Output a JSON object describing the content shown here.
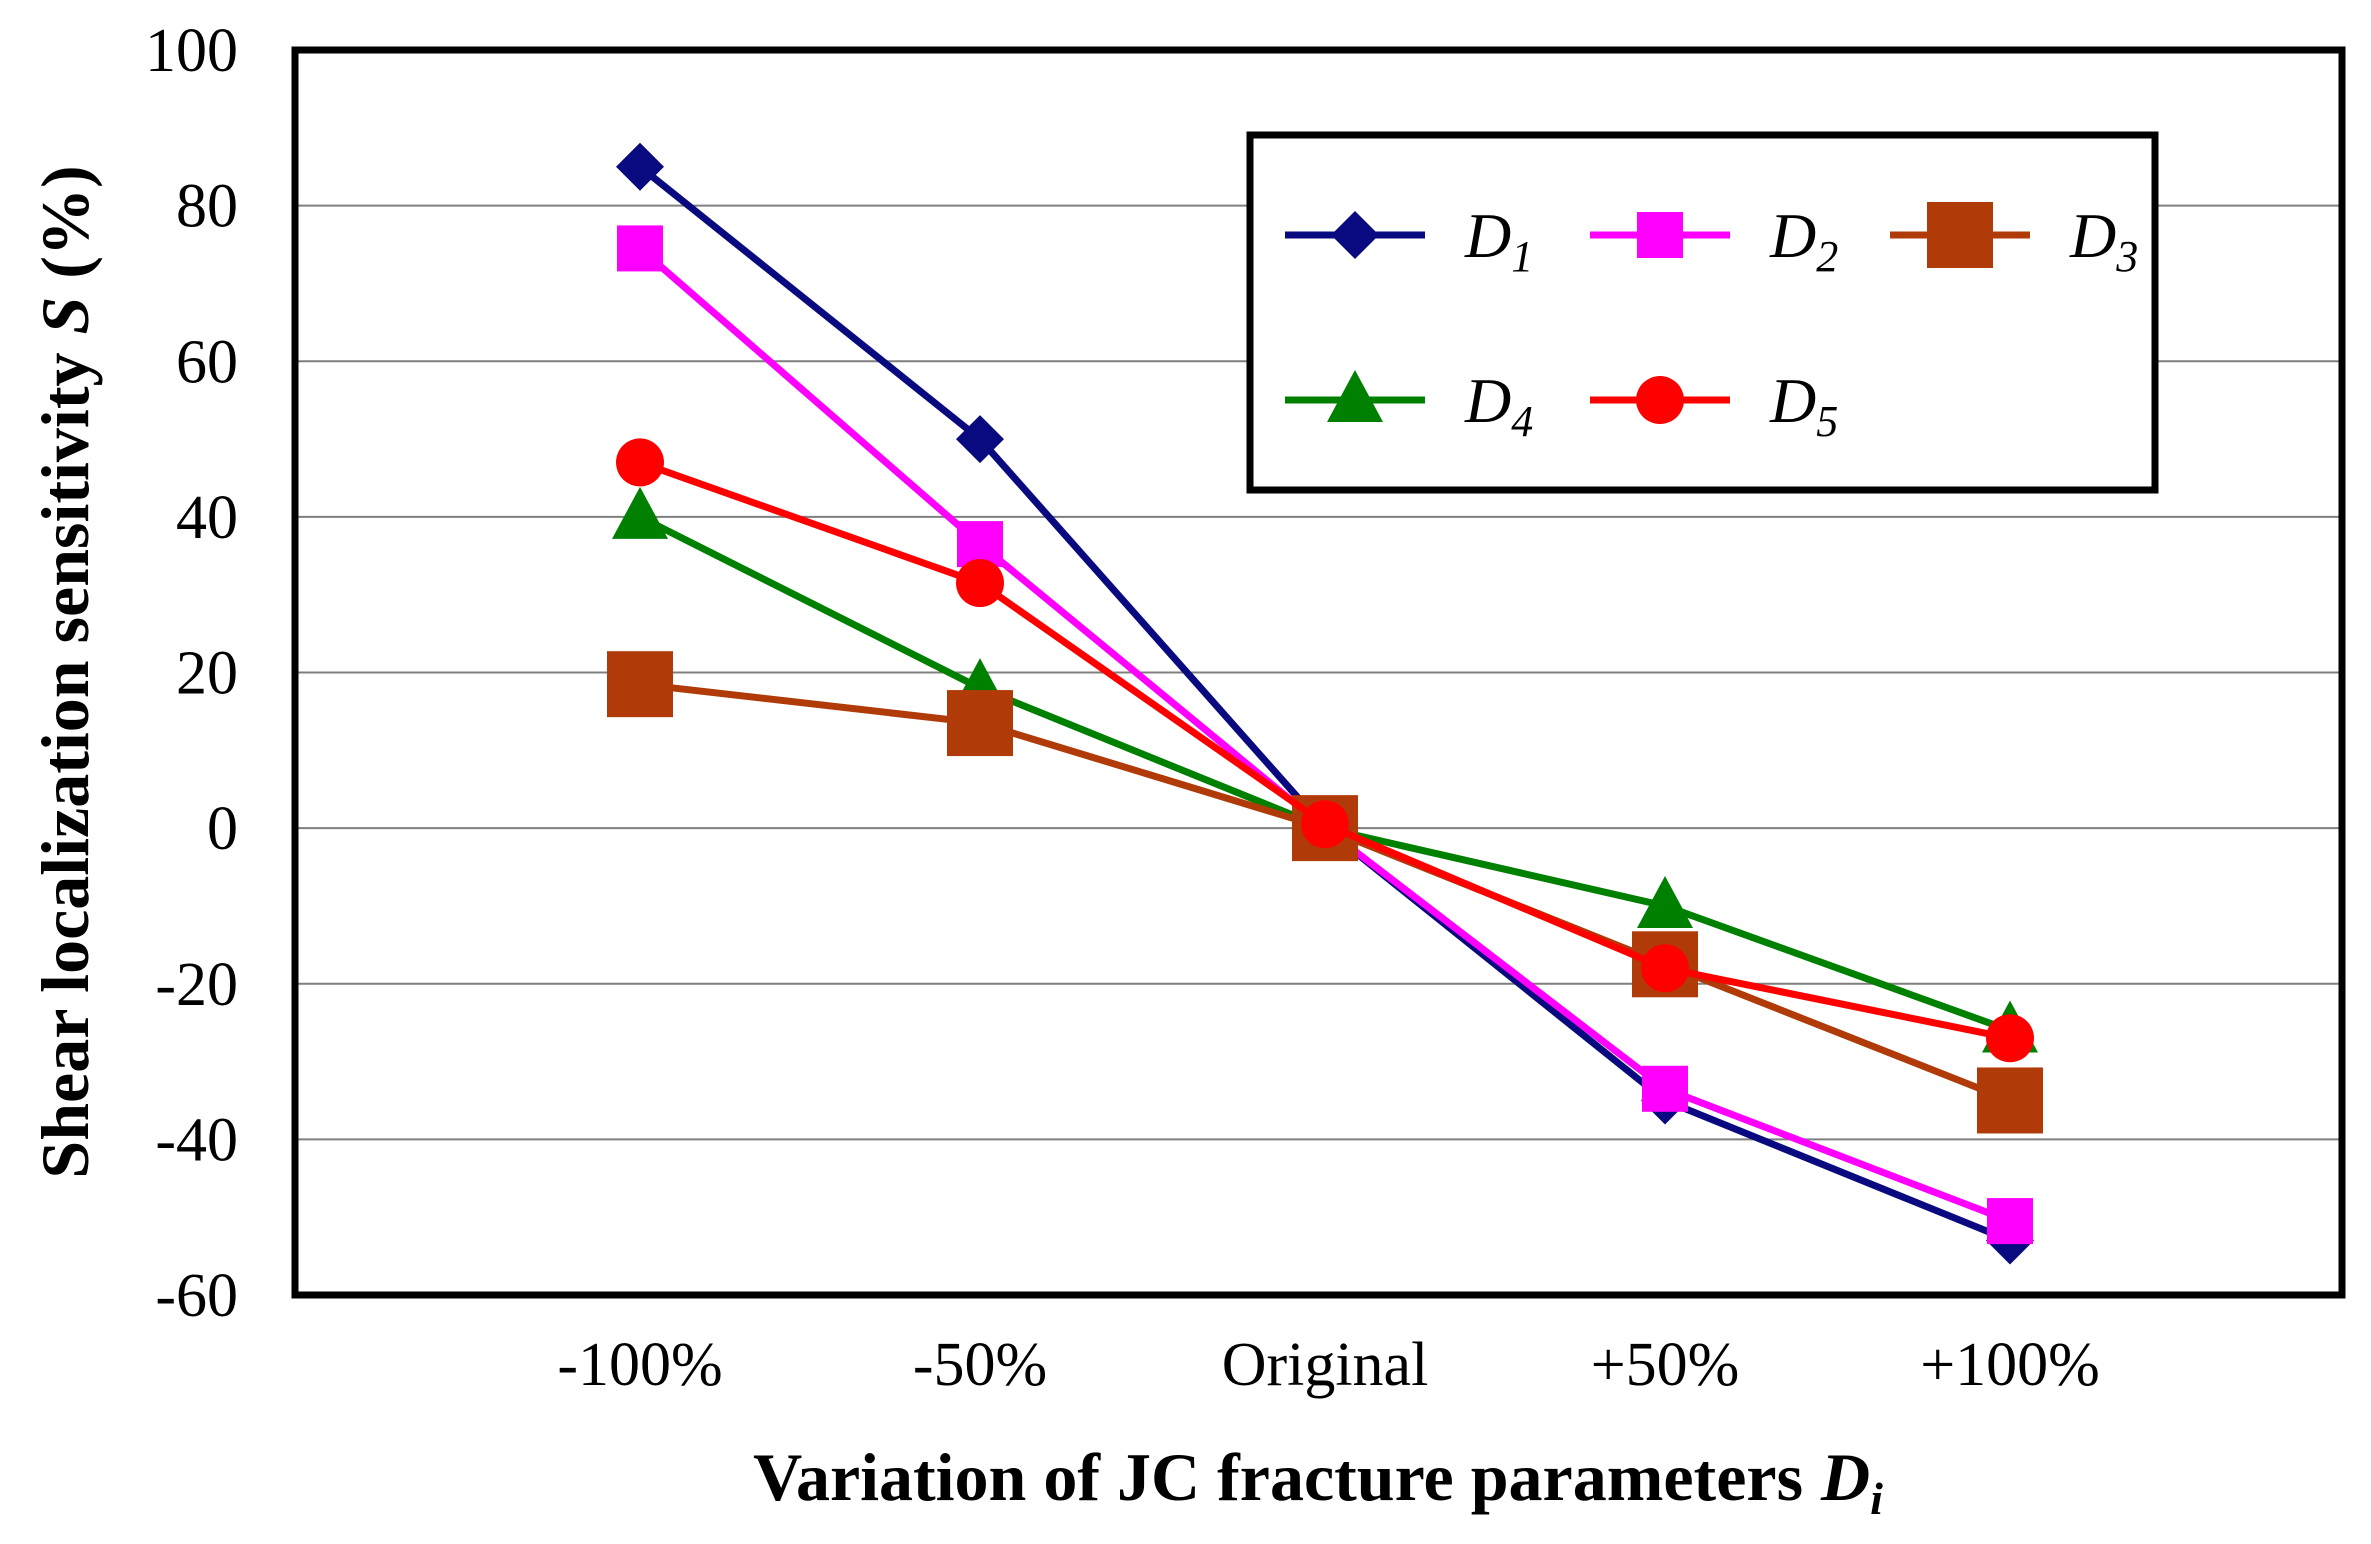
{
  "chart_data": {
    "type": "line",
    "title": "",
    "xlabel": "Variation of JC fracture parameters",
    "xlabel_symbol": "D",
    "xlabel_subscript": "i",
    "ylabel": "Shear localization sensitivity",
    "ylabel_symbol": "S",
    "ylabel_unit": "(%)",
    "categories": [
      "-100%",
      "-50%",
      "Original",
      "+50%",
      "+100%"
    ],
    "ylim": [
      -60,
      100
    ],
    "yticks": [
      -60,
      -40,
      -20,
      0,
      20,
      40,
      60,
      80,
      100
    ],
    "grid": "horizontal",
    "legend_position": "top-right",
    "series": [
      {
        "name": "D",
        "subscript": "1",
        "color": "#0a0a80",
        "marker": "diamond",
        "values": [
          85,
          50,
          0,
          -35,
          -53
        ]
      },
      {
        "name": "D",
        "subscript": "2",
        "color": "#ff00ff",
        "marker": "square",
        "values": [
          74.5,
          36.5,
          0,
          -33.5,
          -50.5
        ]
      },
      {
        "name": "D",
        "subscript": "3",
        "color": "#b03a08",
        "marker": "square-large",
        "values": [
          18.5,
          13.5,
          0,
          -17.5,
          -35
        ]
      },
      {
        "name": "D",
        "subscript": "4",
        "color": "#008000",
        "marker": "triangle",
        "values": [
          40,
          18,
          0,
          -10,
          -26
        ]
      },
      {
        "name": "D",
        "subscript": "5",
        "color": "#ff0000",
        "marker": "circle",
        "values": [
          47,
          31.5,
          0.5,
          -18,
          -27
        ]
      }
    ]
  }
}
